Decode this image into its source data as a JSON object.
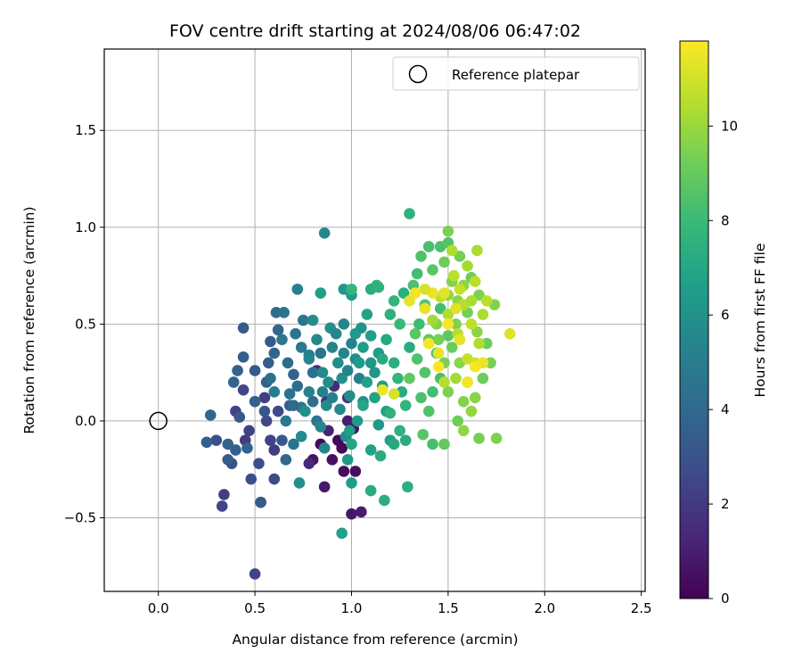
{
  "chart_data": {
    "type": "scatter",
    "title": "FOV centre drift starting at 2024/08/06 06:47:02",
    "xlabel": "Angular distance from reference (arcmin)",
    "ylabel": "Rotation from reference (arcmin)",
    "xlim": [
      -0.28,
      2.52
    ],
    "ylim": [
      -0.88,
      1.92
    ],
    "xticks": [
      0.0,
      0.5,
      1.0,
      1.5,
      2.0,
      2.5
    ],
    "xtick_labels": [
      "0.0",
      "0.5",
      "1.0",
      "1.5",
      "2.0",
      "2.5"
    ],
    "yticks": [
      -0.5,
      0.0,
      0.5,
      1.0,
      1.5
    ],
    "ytick_labels": [
      "−0.5",
      "0.0",
      "0.5",
      "1.0",
      "1.5"
    ],
    "grid": true,
    "legend": {
      "position": "top-right",
      "entries": [
        "Reference platepar"
      ]
    },
    "reference_point": {
      "x": 0.0,
      "y": 0.0,
      "label": "Reference platepar"
    },
    "colorbar": {
      "label": "Hours from first FF file",
      "colormap": "viridis",
      "range": [
        0,
        11.8
      ],
      "ticks": [
        0,
        2,
        4,
        6,
        8,
        10
      ],
      "tick_labels": [
        "0",
        "2",
        "4",
        "6",
        "8",
        "10"
      ]
    },
    "points": [
      [
        0.84,
        -0.12,
        0.3
      ],
      [
        0.9,
        -0.2,
        0.5
      ],
      [
        0.96,
        -0.26,
        0.4
      ],
      [
        1.01,
        -0.04,
        0.6
      ],
      [
        0.86,
        -0.34,
        0.8
      ],
      [
        0.95,
        -0.14,
        0.2
      ],
      [
        1.0,
        -0.48,
        0.7
      ],
      [
        1.05,
        -0.47,
        0.9
      ],
      [
        0.98,
        0.0,
        1.0
      ],
      [
        0.93,
        -0.1,
        0.3
      ],
      [
        0.8,
        -0.2,
        0.6
      ],
      [
        1.02,
        -0.26,
        0.5
      ],
      [
        0.88,
        -0.05,
        1.2
      ],
      [
        0.91,
        0.18,
        1.4
      ],
      [
        0.87,
        0.1,
        1.6
      ],
      [
        0.98,
        0.12,
        1.8
      ],
      [
        0.82,
        0.26,
        1.5
      ],
      [
        0.78,
        -0.22,
        1.3
      ],
      [
        0.5,
        -0.79,
        2.4
      ],
      [
        0.53,
        -0.42,
        2.6
      ],
      [
        0.34,
        -0.38,
        2.2
      ],
      [
        0.33,
        -0.44,
        2.5
      ],
      [
        0.48,
        -0.3,
        2.8
      ],
      [
        0.45,
        -0.1,
        2.0
      ],
      [
        0.4,
        0.05,
        2.3
      ],
      [
        0.56,
        0.0,
        2.7
      ],
      [
        0.6,
        -0.15,
        2.1
      ],
      [
        0.52,
        -0.22,
        2.9
      ],
      [
        0.58,
        -0.1,
        2.4
      ],
      [
        0.62,
        0.05,
        2.6
      ],
      [
        0.3,
        -0.1,
        2.8
      ],
      [
        0.38,
        -0.22,
        3.0
      ],
      [
        0.44,
        0.16,
        2.5
      ],
      [
        0.55,
        0.12,
        2.2
      ],
      [
        0.6,
        -0.3,
        2.7
      ],
      [
        0.47,
        -0.05,
        2.3
      ],
      [
        0.36,
        -0.2,
        3.4
      ],
      [
        0.4,
        -0.15,
        3.6
      ],
      [
        0.42,
        0.02,
        3.2
      ],
      [
        0.44,
        0.33,
        3.5
      ],
      [
        0.44,
        0.48,
        3.4
      ],
      [
        0.39,
        0.2,
        3.8
      ],
      [
        0.41,
        0.26,
        3.6
      ],
      [
        0.5,
        0.26,
        3.3
      ],
      [
        0.36,
        -0.12,
        3.7
      ],
      [
        0.25,
        -0.11,
        3.5
      ],
      [
        0.27,
        0.03,
        3.9
      ],
      [
        0.53,
        -0.42,
        3.4
      ],
      [
        0.56,
        0.2,
        3.6
      ],
      [
        0.6,
        0.35,
        3.8
      ],
      [
        0.62,
        0.47,
        3.9
      ],
      [
        0.57,
        0.3,
        3.5
      ],
      [
        0.64,
        -0.1,
        3.3
      ],
      [
        0.68,
        0.08,
        3.7
      ],
      [
        0.5,
        0.1,
        3.6
      ],
      [
        0.46,
        -0.14,
        3.8
      ],
      [
        0.66,
        -0.2,
        3.9
      ],
      [
        0.58,
        0.41,
        3.4
      ],
      [
        0.55,
        0.05,
        3.2
      ],
      [
        0.7,
        0.24,
        3.8
      ],
      [
        0.61,
        0.56,
        4.2
      ],
      [
        0.65,
        0.56,
        4.4
      ],
      [
        0.71,
        0.45,
        4.6
      ],
      [
        0.74,
        0.38,
        4.8
      ],
      [
        0.67,
        0.3,
        4.1
      ],
      [
        0.72,
        0.18,
        4.3
      ],
      [
        0.74,
        0.07,
        4.7
      ],
      [
        0.7,
        -0.12,
        4.5
      ],
      [
        0.78,
        0.34,
        4.9
      ],
      [
        0.8,
        0.25,
        4.2
      ],
      [
        0.75,
        0.52,
        4.6
      ],
      [
        0.68,
        0.14,
        4.4
      ],
      [
        0.66,
        0.0,
        4.8
      ],
      [
        0.8,
        0.1,
        4.3
      ],
      [
        0.84,
        0.35,
        4.5
      ],
      [
        0.64,
        0.42,
        4.7
      ],
      [
        0.7,
        0.08,
        4.1
      ],
      [
        0.6,
        0.15,
        4.9
      ],
      [
        0.58,
        0.22,
        4.3
      ],
      [
        0.82,
        0.0,
        4.6
      ],
      [
        0.86,
        0.97,
        5.5
      ],
      [
        0.72,
        0.68,
        5.2
      ],
      [
        0.78,
        0.32,
        5.4
      ],
      [
        0.85,
        0.25,
        5.6
      ],
      [
        0.88,
        0.2,
        5.8
      ],
      [
        0.9,
        0.38,
        5.3
      ],
      [
        0.93,
        0.3,
        5.7
      ],
      [
        0.95,
        0.22,
        5.9
      ],
      [
        0.85,
        0.15,
        5.1
      ],
      [
        0.82,
        0.42,
        5.6
      ],
      [
        0.96,
        0.35,
        5.4
      ],
      [
        0.99,
        0.13,
        5.8
      ],
      [
        1.0,
        0.4,
        5.2
      ],
      [
        1.02,
        0.32,
        5.7
      ],
      [
        0.94,
        0.06,
        5.5
      ],
      [
        0.89,
        0.48,
        5.9
      ],
      [
        0.78,
        0.15,
        5.3
      ],
      [
        0.74,
        -0.08,
        5.6
      ],
      [
        0.73,
        -0.32,
        5.8
      ],
      [
        0.86,
        -0.14,
        5.4
      ],
      [
        1.04,
        0.22,
        5.1
      ],
      [
        0.92,
        0.45,
        5.5
      ],
      [
        1.06,
        0.1,
        5.8
      ],
      [
        0.98,
        0.26,
        5.3
      ],
      [
        0.8,
        0.52,
        5.7
      ],
      [
        0.87,
        0.08,
        5.6
      ],
      [
        0.76,
        0.05,
        5.9
      ],
      [
        0.9,
        0.12,
        5.2
      ],
      [
        0.84,
        -0.03,
        5.5
      ],
      [
        0.97,
        -0.08,
        5.7
      ],
      [
        0.96,
        0.5,
        5.4
      ],
      [
        0.96,
        0.68,
        6.2
      ],
      [
        1.0,
        0.65,
        6.4
      ],
      [
        0.84,
        0.66,
        6.6
      ],
      [
        1.02,
        0.45,
        6.3
      ],
      [
        1.06,
        0.38,
        6.5
      ],
      [
        1.08,
        0.2,
        6.7
      ],
      [
        1.1,
        0.3,
        6.2
      ],
      [
        1.12,
        0.12,
        6.8
      ],
      [
        1.03,
        0.0,
        6.4
      ],
      [
        0.99,
        -0.05,
        6.6
      ],
      [
        1.0,
        -0.12,
        6.9
      ],
      [
        0.98,
        -0.2,
        6.3
      ],
      [
        1.0,
        -0.32,
        6.5
      ],
      [
        0.95,
        -0.58,
        6.7
      ],
      [
        1.05,
        0.48,
        6.1
      ],
      [
        1.1,
        0.44,
        6.6
      ],
      [
        1.14,
        0.35,
        6.4
      ],
      [
        1.08,
        0.55,
        6.8
      ],
      [
        1.12,
        0.25,
        6.2
      ],
      [
        1.16,
        0.18,
        6.5
      ],
      [
        1.06,
        0.08,
        6.9
      ],
      [
        1.18,
        0.05,
        6.7
      ],
      [
        1.14,
        -0.02,
        6.3
      ],
      [
        1.2,
        -0.1,
        6.6
      ],
      [
        1.1,
        -0.15,
        6.8
      ],
      [
        1.04,
        0.3,
        6.4
      ],
      [
        1.1,
        -0.36,
        7.2
      ],
      [
        1.17,
        -0.41,
        7.4
      ],
      [
        1.15,
        -0.18,
        7.3
      ],
      [
        1.22,
        -0.12,
        7.1
      ],
      [
        1.25,
        -0.05,
        7.5
      ],
      [
        1.2,
        0.04,
        7.6
      ],
      [
        1.28,
        -0.1,
        7.2
      ],
      [
        1.29,
        -0.34,
        7.4
      ],
      [
        1.13,
        0.7,
        7.5
      ],
      [
        1.1,
        0.68,
        7.3
      ],
      [
        1.14,
        0.69,
        7.6
      ],
      [
        1.0,
        0.68,
        7.8
      ],
      [
        1.18,
        0.42,
        7.1
      ],
      [
        1.22,
        0.3,
        7.4
      ],
      [
        1.24,
        0.22,
        7.7
      ],
      [
        1.26,
        0.15,
        7.2
      ],
      [
        1.2,
        0.55,
        7.5
      ],
      [
        1.25,
        0.5,
        7.9
      ],
      [
        1.3,
        0.38,
        7.3
      ],
      [
        1.3,
        1.07,
        7.6
      ],
      [
        1.22,
        0.62,
        7.8
      ],
      [
        1.27,
        0.66,
        7.4
      ],
      [
        1.28,
        0.08,
        7.7
      ],
      [
        1.16,
        0.32,
        7.2
      ],
      [
        1.34,
        0.76,
        8.2
      ],
      [
        1.36,
        0.85,
        8.5
      ],
      [
        1.4,
        0.9,
        8.3
      ],
      [
        1.42,
        0.78,
        8.7
      ],
      [
        1.32,
        0.7,
        8.4
      ],
      [
        1.38,
        0.6,
        8.6
      ],
      [
        1.35,
        0.5,
        8.1
      ],
      [
        1.4,
        0.42,
        8.8
      ],
      [
        1.44,
        0.35,
        8.4
      ],
      [
        1.38,
        0.25,
        8.6
      ],
      [
        1.42,
        0.15,
        8.2
      ],
      [
        1.4,
        0.05,
        8.5
      ],
      [
        1.37,
        -0.07,
        8.7
      ],
      [
        1.42,
        -0.12,
        8.3
      ],
      [
        1.48,
        -0.12,
        8.9
      ],
      [
        1.46,
        0.9,
        8.4
      ],
      [
        1.5,
        0.92,
        8.6
      ],
      [
        1.46,
        0.58,
        8.2
      ],
      [
        1.5,
        0.44,
        8.8
      ],
      [
        1.34,
        0.32,
        8.5
      ],
      [
        1.46,
        0.22,
        8.3
      ],
      [
        1.33,
        0.45,
        8.7
      ],
      [
        1.36,
        0.12,
        8.4
      ],
      [
        1.3,
        0.22,
        8.9
      ],
      [
        1.5,
        0.98,
        9.4
      ],
      [
        1.48,
        0.82,
        9.2
      ],
      [
        1.52,
        0.72,
        9.6
      ],
      [
        1.56,
        0.85,
        9.3
      ],
      [
        1.55,
        0.62,
        9.8
      ],
      [
        1.54,
        0.5,
        9.5
      ],
      [
        1.52,
        0.38,
        9.1
      ],
      [
        1.56,
        0.3,
        9.7
      ],
      [
        1.6,
        0.2,
        9.4
      ],
      [
        1.58,
        0.1,
        9.6
      ],
      [
        1.55,
        0.0,
        9.2
      ],
      [
        1.62,
        0.05,
        9.9
      ],
      [
        1.66,
        -0.09,
        9.3
      ],
      [
        1.75,
        -0.09,
        9.5
      ],
      [
        1.65,
        0.46,
        9.7
      ],
      [
        1.7,
        0.4,
        9.1
      ],
      [
        1.74,
        0.6,
        9.6
      ],
      [
        1.72,
        0.3,
        9.4
      ],
      [
        1.58,
        0.7,
        9.8
      ],
      [
        1.62,
        0.74,
        9.2
      ],
      [
        1.66,
        0.65,
        9.5
      ],
      [
        1.6,
        0.56,
        9.3
      ],
      [
        1.5,
        0.65,
        9.9
      ],
      [
        1.44,
        0.5,
        9.6
      ],
      [
        1.48,
        0.3,
        9.4
      ],
      [
        1.64,
        0.12,
        9.7
      ],
      [
        1.68,
        0.22,
        9.2
      ],
      [
        1.5,
        0.15,
        9.5
      ],
      [
        1.58,
        -0.05,
        9.8
      ],
      [
        1.45,
        0.42,
        9.3
      ],
      [
        1.52,
        0.88,
        10.4
      ],
      [
        1.6,
        0.8,
        10.2
      ],
      [
        1.64,
        0.72,
        10.6
      ],
      [
        1.65,
        0.88,
        10.3
      ],
      [
        1.58,
        0.6,
        10.5
      ],
      [
        1.62,
        0.5,
        10.7
      ],
      [
        1.66,
        0.4,
        10.4
      ],
      [
        1.6,
        0.32,
        10.8
      ],
      [
        1.54,
        0.22,
        10.2
      ],
      [
        1.64,
        0.3,
        10.9
      ],
      [
        1.55,
        0.45,
        10.5
      ],
      [
        1.68,
        0.55,
        10.3
      ],
      [
        1.7,
        0.62,
        10.6
      ],
      [
        1.5,
        0.55,
        10.4
      ],
      [
        1.46,
        0.64,
        10.7
      ],
      [
        1.42,
        0.52,
        10.2
      ],
      [
        1.48,
        0.2,
        10.5
      ],
      [
        1.56,
        0.68,
        10.8
      ],
      [
        1.62,
        0.62,
        10.3
      ],
      [
        1.53,
        0.75,
        10.6
      ],
      [
        1.48,
        0.66,
        11.3
      ],
      [
        1.42,
        0.66,
        11.5
      ],
      [
        1.38,
        0.68,
        11.1
      ],
      [
        1.33,
        0.66,
        11.6
      ],
      [
        1.3,
        0.62,
        11.4
      ],
      [
        1.82,
        0.45,
        11.2
      ],
      [
        1.68,
        0.3,
        11.5
      ],
      [
        1.64,
        0.28,
        11.7
      ],
      [
        1.45,
        0.35,
        11.4
      ],
      [
        1.4,
        0.4,
        11.6
      ],
      [
        1.56,
        0.42,
        11.3
      ],
      [
        1.5,
        0.5,
        11.7
      ],
      [
        1.22,
        0.14,
        11.1
      ],
      [
        1.16,
        0.16,
        11.5
      ],
      [
        1.38,
        0.58,
        11.4
      ],
      [
        1.45,
        0.28,
        11.8
      ],
      [
        1.54,
        0.58,
        11.2
      ],
      [
        1.6,
        0.2,
        11.6
      ]
    ]
  }
}
